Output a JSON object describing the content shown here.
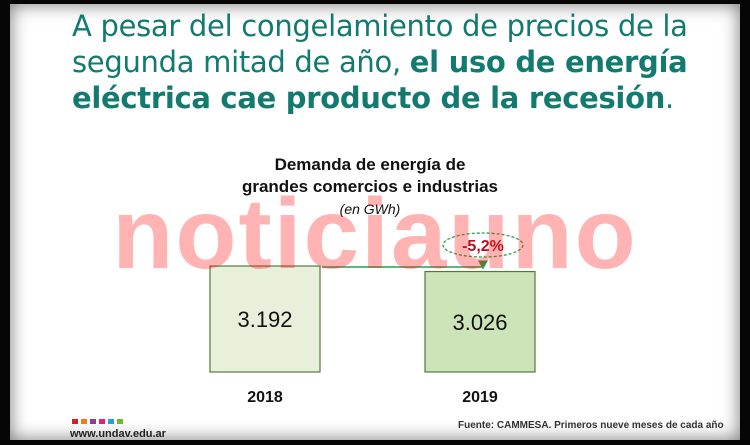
{
  "headline": {
    "part1": "A pesar del congelamiento de precios de la segunda mitad de año,",
    "bold": "el uso de energía eléctrica cae producto de la recesión",
    "end": "."
  },
  "chart_data": {
    "type": "bar",
    "title_line1": "Demanda de energía de",
    "title_line2": "grandes comercios e industrias",
    "subtitle": "(en GWh)",
    "categories": [
      "2018",
      "2019"
    ],
    "values": [
      3192,
      3026
    ],
    "value_labels": [
      "3.192",
      "3.026"
    ],
    "change_label": "-5,2%",
    "colors": {
      "bar_2018": "#e8f0dc",
      "bar_2019": "#cde3b8",
      "bar_border": "#4f7b3a",
      "arrow": "#25a04a",
      "badge_border": "#2aa24e",
      "badge_text": "#b1141e"
    }
  },
  "watermark": "noticiauno",
  "footer": {
    "site": "www.undav.edu.ar",
    "source": "Fuente: CAMMESA. Primeros nueve meses de cada año",
    "logo_colors": [
      "#d11f2a",
      "#f07a1a",
      "#8a3f98",
      "#e61e78",
      "#2c9fd8",
      "#76b72a"
    ]
  }
}
